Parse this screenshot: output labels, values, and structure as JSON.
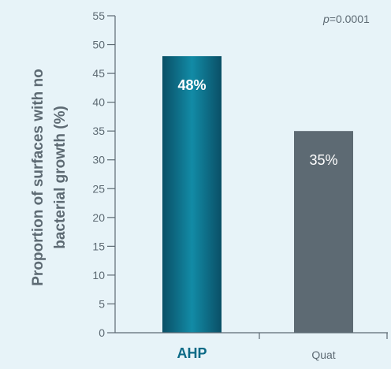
{
  "chart_data": {
    "type": "bar",
    "categories": [
      "AHP",
      "Quat"
    ],
    "values": [
      48,
      35
    ],
    "value_labels": [
      "48%",
      "35%"
    ],
    "ylabel_lines": [
      "Proportion of surfaces with no",
      "bacterial growth (%)"
    ],
    "ylim": [
      0,
      55
    ],
    "yticks": [
      0,
      5,
      10,
      15,
      20,
      25,
      30,
      35,
      40,
      45,
      50,
      55
    ],
    "annotation": {
      "italic": "p",
      "rest": "=0.0001"
    },
    "grid": false,
    "colors": {
      "background": "#e7f3f8",
      "ahp_dark": "#0a4f66",
      "ahp_light": "#128ba6",
      "quat": "#5d6a73",
      "axis": "#5d6a73",
      "ahp_label": "#0b6a86",
      "text": "#5d6a73"
    }
  }
}
